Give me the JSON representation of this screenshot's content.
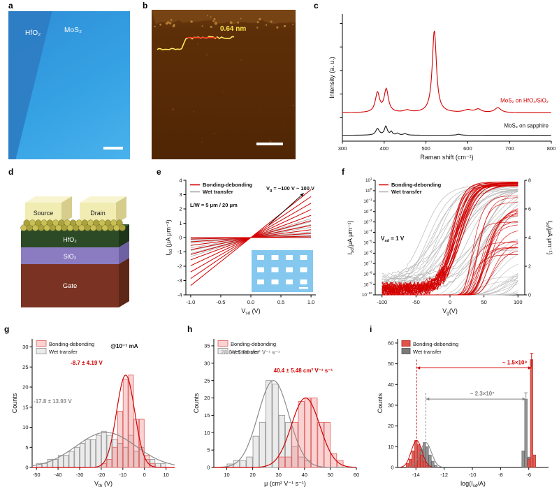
{
  "figure": {
    "background": "#ffffff",
    "accent_red": "#d40000",
    "gray": "#9a9a9a",
    "panels": {
      "a": {
        "letter": "a",
        "region_left": "HfO₂",
        "region_right": "MoS₂"
      },
      "b": {
        "letter": "b",
        "height_label": "0.64 nm"
      },
      "c": {
        "letter": "c"
      },
      "d": {
        "letter": "d",
        "source": "Source",
        "drain": "Drain",
        "electrode": {
          "front": "#f1ecb2",
          "top": "#f8f4cf",
          "side": "#d6cd8d",
          "text": "#1a1a1a"
        },
        "channel_colors": [
          "#cabf55",
          "#aaa23e"
        ],
        "layers": [
          {
            "label": "HfO₂",
            "front": "#2c4a26",
            "top": "#3a5c33",
            "side": "#1e3519"
          },
          {
            "label": "SiO₂",
            "front": "#8b7cc2",
            "top": "#9e90cf",
            "side": "#6e61a3"
          },
          {
            "label": "Gate",
            "front": "#7a3322",
            "top": "#8f4030",
            "side": "#5e2617"
          }
        ]
      },
      "e": {
        "letter": "e"
      },
      "f": {
        "letter": "f"
      },
      "g": {
        "letter": "g"
      },
      "h": {
        "letter": "h"
      },
      "i": {
        "letter": "i"
      }
    }
  },
  "chart_data": [
    {
      "id": "raman",
      "type": "line",
      "xlabel": "Raman shift (cm⁻¹)",
      "ylabel": "Intensity (a. u.)",
      "xlim": [
        300,
        800
      ],
      "xticks": [
        300,
        400,
        500,
        600,
        700,
        800
      ],
      "series": [
        {
          "name": "MoS₂ on sapphire",
          "color": "#1a1a1a",
          "baseline": 0.05,
          "peaks": [
            [
              384,
              5,
              0.055
            ],
            [
              404,
              4,
              0.075
            ],
            [
              417,
              3,
              0.028
            ],
            [
              432,
              4,
              0.016
            ],
            [
              450,
              5,
              0.012
            ],
            [
              578,
              6,
              0.008
            ]
          ]
        },
        {
          "name": "MoS₂ on HfO₂/SiO₂",
          "color": "#d40000",
          "baseline": 0.24,
          "peaks": [
            [
              384,
              6,
              0.165
            ],
            [
              405,
              6,
              0.195
            ],
            [
              455,
              9,
              0.018
            ],
            [
              520,
              6,
              0.7
            ],
            [
              600,
              11,
              0.022
            ],
            [
              625,
              9,
              0.028
            ],
            [
              672,
              9,
              0.042
            ]
          ]
        }
      ]
    },
    {
      "id": "output",
      "type": "line",
      "xlabel": "V_{sd} (V)",
      "ylabel": "I_{sd} (μA μm⁻¹)",
      "xlim": [
        -1.08,
        1.08
      ],
      "ylim": [
        -4,
        4
      ],
      "xticks": [
        -1.0,
        -0.5,
        0.0,
        0.5,
        1.0
      ],
      "yticks": [
        -4,
        -3,
        -2,
        -1,
        0,
        1,
        2,
        3,
        4
      ],
      "legend": [
        {
          "label": "Bonding-debonding",
          "color": "#d40000"
        },
        {
          "label": "Wet transfer",
          "color": "#a8a8a8"
        }
      ],
      "annotations": {
        "lw": "L/W = 5 μm / 20 μm",
        "vg_range": "V_{g} = −100 V ~ 100 V"
      },
      "families": [
        {
          "name": "Wet transfer",
          "color": "#a8a8a8",
          "n": 11,
          "max_slope": 1.55,
          "gamma": 1.5,
          "lw": 0.8
        },
        {
          "name": "Bonding-debonding",
          "color": "#d40000",
          "n": 11,
          "max_slope": 3.35,
          "gamma": 1.5,
          "lw": 1.0
        }
      ],
      "inset": {
        "fill": "#85c8ef",
        "pads": "#ffffff",
        "rows": 3,
        "cols": 4
      }
    },
    {
      "id": "transfer",
      "type": "line",
      "xlabel": "V_{g}(V)",
      "ylabel_left": "I_{sd}(μA μm⁻¹)",
      "ylabel_right": "I_{sd}(μA μm⁻¹)",
      "xlim": [
        -110,
        110
      ],
      "xticks": [
        -100,
        -50,
        0,
        50,
        100
      ],
      "ylog_decades": [
        -10,
        1
      ],
      "ylin": [
        0,
        8
      ],
      "yticks_right": [
        0,
        2,
        4,
        6,
        8
      ],
      "annotation": "V_{sd} = 1 V",
      "legend": [
        {
          "label": "Bonding-debonding",
          "color": "#d40000"
        },
        {
          "label": "Wet transfer",
          "color": "#b3b3b3"
        }
      ],
      "families": [
        {
          "name": "Wet transfer",
          "color": "#b9b9b9",
          "n": 24,
          "seed": 97,
          "vth_range": [
            -75,
            15
          ],
          "ion_range": [
            1.0,
            6.5
          ],
          "off_log_range": [
            -10,
            -8.3
          ],
          "width_range": [
            14,
            30
          ],
          "noise": 0.12,
          "lw": 0.7
        },
        {
          "name": "Bonding-debonding",
          "color": "#d40000",
          "n": 22,
          "seed": 23,
          "vth_range": [
            -20,
            -6
          ],
          "ion_range": [
            2.5,
            7.0
          ],
          "off_log_range": [
            -9.9,
            -9.1
          ],
          "width_range": [
            8,
            14
          ],
          "noise": 0.38,
          "lw": 0.75
        }
      ]
    },
    {
      "id": "vth_hist",
      "type": "histogram",
      "xlabel": "V_{th} (V)",
      "ylabel": "Counts",
      "xlim": [
        -52,
        14
      ],
      "ylim": [
        0,
        32
      ],
      "xticks": [
        -50,
        -40,
        -30,
        -20,
        -10,
        0,
        10
      ],
      "yticks": [
        0,
        5,
        10,
        15,
        20,
        25,
        30
      ],
      "bin_width": 2.5,
      "series": [
        {
          "name": "Wet transfer",
          "bin_start": -50,
          "counts": [
            1,
            1,
            2,
            2,
            3,
            3,
            4,
            5,
            6,
            7,
            7,
            8,
            9,
            8,
            7,
            6,
            5,
            8,
            4,
            5,
            2,
            2,
            1,
            1
          ],
          "fill": "rgba(210,210,210,0.45)",
          "edge": "#9a9a9a",
          "gauss": {
            "mean": -17.8,
            "sd": 13.93,
            "peak": 8.7,
            "color": "#8a8a8a"
          },
          "stat_label": "-17.8 ± 13.93 V",
          "stat_color": "#8c8c8c",
          "stat_pos": [
            0.01,
            0.5
          ]
        },
        {
          "name": "Bonding-debonding",
          "bin_start": -20,
          "counts": [
            1,
            2,
            5,
            14,
            22,
            23,
            12,
            12,
            3,
            1
          ],
          "fill": "rgba(238,105,105,0.30)",
          "edge": "#e06a6a",
          "gauss": {
            "mean": -8.7,
            "sd": 4.19,
            "peak": 23,
            "color": "#d40000"
          },
          "stat_label": "-8.7 ± 4.19 V",
          "stat_color": "#d40000",
          "stat_pos": [
            0.27,
            0.2
          ]
        }
      ],
      "note": "@10⁻⁷ mA",
      "note_pos": [
        0.55,
        0.07
      ],
      "legend": [
        {
          "label": "Bonding-debonding",
          "fill": "rgba(238,105,105,0.30)",
          "edge": "#e06a6a"
        },
        {
          "label": "Wet transfer",
          "fill": "rgba(210,210,210,0.45)",
          "edge": "#9a9a9a"
        }
      ]
    },
    {
      "id": "mu_hist",
      "type": "histogram",
      "xlabel": "μ (cm² V⁻¹ s⁻¹)",
      "ylabel": "Counts",
      "xlim": [
        5,
        60
      ],
      "ylim": [
        0,
        37
      ],
      "xticks": [
        10,
        20,
        30,
        40,
        50,
        60
      ],
      "yticks": [
        0,
        5,
        10,
        15,
        20,
        25,
        30,
        35
      ],
      "bin_width": 2.5,
      "series": [
        {
          "name": "Wet transfer",
          "bin_start": 10,
          "counts": [
            1,
            2,
            2,
            3,
            9,
            13,
            25,
            24,
            15,
            13,
            6,
            3,
            2
          ],
          "fill": "rgba(210,210,210,0.45)",
          "edge": "#9a9a9a",
          "gauss": {
            "mean": 28.0,
            "sd": 5.94,
            "peak": 25,
            "color": "#8a8a8a"
          },
          "stat_label": "28.0 ± 5.94 cm² V⁻¹ s⁻¹",
          "stat_color": "#8c8c8c",
          "stat_pos": [
            0.05,
            0.12
          ]
        },
        {
          "name": "Bonding-debonding",
          "bin_start": 30,
          "counts": [
            3,
            3,
            13,
            19,
            20,
            20,
            13,
            13,
            4,
            2
          ],
          "fill": "rgba(238,105,105,0.30)",
          "edge": "#e06a6a",
          "gauss": {
            "mean": 40.4,
            "sd": 5.48,
            "peak": 20,
            "color": "#d40000"
          },
          "stat_label": "40.4 ± 5.48 cm² V⁻¹ s⁻¹",
          "stat_color": "#d40000",
          "stat_pos": [
            0.42,
            0.26
          ]
        }
      ],
      "legend": [
        {
          "label": "Bonding-debonding",
          "fill": "rgba(238,105,105,0.30)",
          "edge": "#e06a6a"
        },
        {
          "label": "Wet transfer",
          "fill": "rgba(210,210,210,0.45)",
          "edge": "#9a9a9a"
        }
      ]
    },
    {
      "id": "ratio_hist",
      "type": "histogram",
      "xlabel": "log(I_{sd}/A)",
      "ylabel": "Counts",
      "xlim": [
        -15.3,
        -4.6
      ],
      "ylim": [
        0,
        62
      ],
      "xticks": [
        -14,
        -12,
        -10,
        -8,
        -6
      ],
      "yticks": [
        0,
        10,
        20,
        30,
        40,
        50,
        60
      ],
      "bar_width": 0.2,
      "red_bars": [
        [
          -14.6,
          2
        ],
        [
          -14.4,
          4
        ],
        [
          -14.2,
          8
        ],
        [
          -14.0,
          13
        ],
        [
          -13.8,
          11
        ],
        [
          -13.6,
          6
        ],
        [
          -13.4,
          3
        ],
        [
          -13.2,
          1
        ],
        [
          -6.0,
          4
        ],
        [
          -5.8,
          52
        ],
        [
          -5.6,
          6
        ]
      ],
      "gray_bars": [
        [
          -14.0,
          2
        ],
        [
          -13.8,
          5
        ],
        [
          -13.6,
          9
        ],
        [
          -13.4,
          12
        ],
        [
          -13.2,
          10
        ],
        [
          -13.0,
          6
        ],
        [
          -12.8,
          3
        ],
        [
          -12.6,
          1
        ],
        [
          -6.4,
          8
        ],
        [
          -6.2,
          33
        ],
        [
          -6.0,
          5
        ]
      ],
      "red_gauss": {
        "mean": -13.95,
        "sd": 0.38,
        "peak": 13
      },
      "gray_gauss": {
        "mean": -13.3,
        "sd": 0.4,
        "peak": 12
      },
      "red_arrow": {
        "x1": -13.95,
        "x2": -5.8,
        "y": 48,
        "label": "~ 1.5×10⁸"
      },
      "gray_arrow": {
        "x1": -13.3,
        "x2": -6.2,
        "y": 33,
        "label": "~ 2.3×10⁷"
      },
      "red_fill": "#e2524c",
      "red_edge": "#b02a20",
      "gray_fill": "#8a8a8a",
      "gray_edge": "#5f5f5f",
      "red_color": "#d40000",
      "gray_color": "#808080",
      "legend": [
        {
          "label": "Bonding-debonding",
          "fill": "#e2524c",
          "edge": "#b02a20"
        },
        {
          "label": "Wet transfer",
          "fill": "#7a7a7a",
          "edge": "#5f5f5f"
        }
      ]
    }
  ]
}
